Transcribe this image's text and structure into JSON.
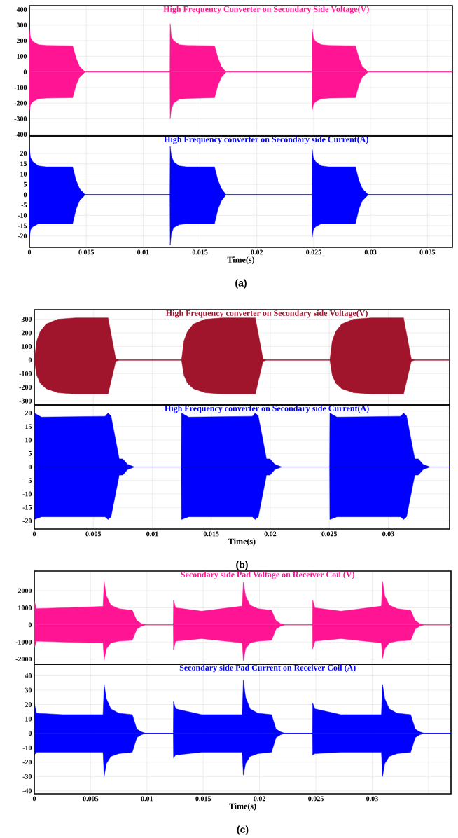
{
  "chart_data": [
    {
      "type": "area",
      "title": "High Frequency Converter on  Secondary Side Voltage(V)",
      "x": [
        0,
        0.0001,
        0.0003,
        0.0008,
        0.0015,
        0.0038,
        0.0041,
        0.0044,
        0.0049,
        0.01236,
        0.01238,
        0.01248,
        0.01268,
        0.01318,
        0.01388,
        0.01628,
        0.01658,
        0.01688,
        0.0173,
        0.02485,
        0.02487,
        0.02497,
        0.02517,
        0.02567,
        0.02637,
        0.02867,
        0.02897,
        0.02927,
        0.0298,
        0.0372
      ],
      "series": [
        {
          "color": "#ff1493",
          "values": [
            270,
            220,
            195,
            175,
            170,
            168,
            90,
            35,
            0,
            0,
            310,
            230,
            200,
            175,
            170,
            168,
            90,
            35,
            0,
            0,
            275,
            220,
            195,
            175,
            170,
            168,
            90,
            35,
            0,
            0
          ]
        },
        {
          "color": "#ff1493",
          "values": [
            -245,
            -210,
            -190,
            -172,
            -168,
            -165,
            -85,
            -35,
            0,
            0,
            -300,
            -240,
            -200,
            -175,
            -170,
            -165,
            -85,
            -35,
            0,
            0,
            -245,
            -210,
            -190,
            -172,
            -168,
            -165,
            -85,
            -35,
            0,
            0
          ]
        }
      ],
      "xlim": [
        0,
        0.0372
      ],
      "ylim": [
        -410,
        425
      ],
      "xticks": [
        0,
        0.005,
        0.01,
        0.015,
        0.02,
        0.025,
        0.03,
        0.035
      ],
      "yticks": [
        -400,
        -300,
        -200,
        -100,
        0,
        100,
        200,
        300,
        400
      ],
      "grid": true,
      "tick_labels": "y"
    },
    {
      "type": "area",
      "title": "High Frequency converter on Secondary side  Current(A)",
      "xlabel": "Time(s)",
      "annotations": [
        "(a)"
      ],
      "x": [
        0,
        0.0001,
        0.0003,
        0.0008,
        0.0015,
        0.0038,
        0.0041,
        0.0044,
        0.0049,
        0.01236,
        0.01238,
        0.01248,
        0.01268,
        0.01318,
        0.01388,
        0.01628,
        0.01658,
        0.01688,
        0.0173,
        0.02485,
        0.02487,
        0.02497,
        0.02517,
        0.02567,
        0.02637,
        0.02867,
        0.02897,
        0.02927,
        0.0298,
        0.0372
      ],
      "series": [
        {
          "color": "#0000ff",
          "values": [
            22,
            18,
            16,
            14,
            13.5,
            13.5,
            7,
            3,
            0,
            0,
            23.5,
            19,
            16,
            14,
            13.5,
            13.5,
            7,
            3,
            0,
            0,
            22,
            18,
            16,
            14,
            13.5,
            13.5,
            7,
            3,
            0,
            0
          ]
        },
        {
          "color": "#0000ff",
          "values": [
            -20.5,
            -17,
            -15.5,
            -14,
            -14,
            -14,
            -7,
            -3,
            0,
            0,
            -24.5,
            -19,
            -16,
            -14.5,
            -14,
            -14,
            -7,
            -3,
            0,
            0,
            -20.5,
            -17,
            -15.5,
            -14,
            -14,
            -14,
            -7,
            -3,
            0,
            0
          ]
        }
      ],
      "xlim": [
        0,
        0.0372
      ],
      "ylim": [
        -25.5,
        28.5
      ],
      "xticks": [
        0,
        0.005,
        0.01,
        0.015,
        0.02,
        0.025,
        0.03,
        0.035
      ],
      "yticks": [
        -20,
        -15,
        -10,
        -5,
        0,
        5,
        10,
        15,
        20
      ],
      "grid": true
    },
    {
      "type": "area",
      "title": "High Frequency converter on  Secondary side Voltage(V)",
      "x": [
        0,
        0.0002,
        0.0005,
        0.001,
        0.002,
        0.0035,
        0.00625,
        0.0069,
        0.0072,
        0.01248,
        0.01268,
        0.01298,
        0.01348,
        0.01448,
        0.01598,
        0.01873,
        0.01938,
        0.01968,
        0.02505,
        0.02525,
        0.02555,
        0.02605,
        0.02705,
        0.02855,
        0.0313,
        0.03195,
        0.03225,
        0.0352
      ],
      "series": [
        {
          "color": "#a0142c",
          "values": [
            0,
            140,
            210,
            265,
            300,
            310,
            310,
            10,
            0,
            0,
            140,
            210,
            265,
            300,
            310,
            310,
            10,
            0,
            0,
            140,
            210,
            265,
            300,
            310,
            310,
            10,
            0,
            0
          ]
        },
        {
          "color": "#a0142c",
          "values": [
            0,
            -110,
            -170,
            -210,
            -240,
            -250,
            -250,
            -10,
            0,
            0,
            -110,
            -170,
            -210,
            -240,
            -250,
            -250,
            -10,
            0,
            0,
            -110,
            -170,
            -210,
            -240,
            -250,
            -250,
            -10,
            0,
            0
          ]
        }
      ],
      "xlim": [
        0,
        0.0352
      ],
      "ylim": [
        -330,
        370
      ],
      "xticks": [
        0,
        0.005,
        0.01,
        0.015,
        0.02,
        0.025,
        0.03,
        0.035
      ],
      "yticks": [
        -300,
        -200,
        -100,
        0,
        100,
        200,
        300
      ],
      "grid": true,
      "tick_labels": "y"
    },
    {
      "type": "area",
      "title": "High Frequency converter on Secondary side  Current(A)",
      "xlabel": "Time(s)",
      "annotations": [
        "(b)"
      ],
      "x": [
        0,
        0.0006,
        0.006,
        0.00625,
        0.0065,
        0.0072,
        0.0075,
        0.0079,
        0.0085,
        0.01246,
        0.01248,
        0.01308,
        0.01848,
        0.01873,
        0.01898,
        0.01968,
        0.01998,
        0.02038,
        0.02098,
        0.02503,
        0.02505,
        0.02565,
        0.03105,
        0.0313,
        0.03155,
        0.03225,
        0.03255,
        0.03295,
        0.03355,
        0.0352
      ],
      "series": [
        {
          "color": "#0000ff",
          "values": [
            20,
            18.5,
            18.8,
            20,
            19,
            3,
            3,
            1,
            0,
            0,
            20,
            18.5,
            18.8,
            20,
            19,
            3,
            3,
            1,
            0,
            0,
            20,
            18.5,
            18.8,
            20,
            19,
            3,
            3,
            1,
            0,
            0
          ]
        },
        {
          "color": "#0000ff",
          "values": [
            -19.5,
            -18.5,
            -18.5,
            -19.5,
            -18.5,
            -3,
            -3,
            -1,
            0,
            0,
            -19.5,
            -18.5,
            -18.5,
            -19.5,
            -18.5,
            -3,
            -3,
            -1,
            0,
            0,
            -19.5,
            -18.5,
            -18.5,
            -19.5,
            -18.5,
            -3,
            -3,
            -1,
            0,
            0
          ]
        }
      ],
      "xlim": [
        0,
        0.0352
      ],
      "ylim": [
        -23,
        23
      ],
      "xticks": [
        0,
        0.005,
        0.01,
        0.015,
        0.02,
        0.025,
        0.03,
        {
          "value": 0.035,
          "label": null
        }
      ],
      "yticks": [
        -20,
        -15,
        -10,
        -5,
        0,
        5,
        10,
        15,
        20
      ],
      "grid": true
    },
    {
      "type": "area",
      "title": "Secondary side Pad Voltage on Receiver Coil (V)",
      "x": [
        0,
        0.0002,
        0.0025,
        0.0061,
        0.0062,
        0.0064,
        0.0068,
        0.0075,
        0.0087,
        0.0091,
        0.0095,
        0.0099,
        0.01234,
        0.01236,
        0.01256,
        0.01486,
        0.01846,
        0.01856,
        0.01876,
        0.01916,
        0.01986,
        0.02106,
        0.02146,
        0.02186,
        0.02226,
        0.0247,
        0.02472,
        0.02492,
        0.02722,
        0.03082,
        0.03092,
        0.03112,
        0.03152,
        0.03222,
        0.03342,
        0.03382,
        0.03422,
        0.03462,
        0.037
      ],
      "series": [
        {
          "color": "#ff1493",
          "values": [
            1400,
            950,
            1000,
            1080,
            2550,
            1700,
            1150,
            950,
            850,
            250,
            80,
            0,
            0,
            1450,
            1000,
            800,
            1100,
            2500,
            1700,
            1150,
            950,
            850,
            250,
            80,
            0,
            0,
            1450,
            1000,
            800,
            1100,
            2550,
            1700,
            1150,
            950,
            850,
            250,
            80,
            0,
            0
          ]
        },
        {
          "color": "#ff1493",
          "values": [
            -1350,
            -950,
            -1000,
            -1050,
            -2050,
            -1400,
            -1050,
            -950,
            -900,
            -250,
            -80,
            0,
            0,
            -1450,
            -950,
            -800,
            -1050,
            -2100,
            -1400,
            -1050,
            -950,
            -900,
            -250,
            -80,
            0,
            0,
            -1400,
            -950,
            -800,
            -1050,
            -1950,
            -1400,
            -1050,
            -950,
            -900,
            -250,
            -80,
            0,
            0
          ]
        }
      ],
      "xlim": [
        0,
        0.037
      ],
      "ylim": [
        -2300,
        3150
      ],
      "xticks": [
        0,
        0.005,
        0.01,
        0.015,
        0.02,
        0.025,
        0.03,
        0.035
      ],
      "yticks": [
        -2000,
        -1000,
        0,
        1000,
        2000
      ],
      "grid": true,
      "tick_labels": "y"
    },
    {
      "type": "area",
      "title": "Secondary side Pad Current on Receiver Coil (A)",
      "xlabel": "Time(s)",
      "annotations": [
        "(c)"
      ],
      "x": [
        0,
        0.0002,
        0.0025,
        0.0061,
        0.0062,
        0.0064,
        0.0068,
        0.0075,
        0.0087,
        0.0091,
        0.0095,
        0.0099,
        0.01234,
        0.01236,
        0.01256,
        0.01486,
        0.01846,
        0.01856,
        0.01876,
        0.01916,
        0.01986,
        0.02106,
        0.02146,
        0.02186,
        0.02226,
        0.0247,
        0.02472,
        0.02492,
        0.02722,
        0.03082,
        0.03092,
        0.03112,
        0.03152,
        0.03222,
        0.03342,
        0.03382,
        0.03422,
        0.03462,
        0.037
      ],
      "series": [
        {
          "color": "#0000ff",
          "values": [
            21,
            14,
            13,
            13,
            34,
            24,
            17,
            14,
            13,
            3,
            1,
            0,
            0,
            22,
            17,
            13,
            13,
            37,
            25,
            17,
            14,
            13,
            3,
            1,
            0,
            0,
            21,
            17,
            13,
            13,
            34,
            24,
            17,
            14,
            13,
            3,
            1,
            0,
            0
          ]
        },
        {
          "color": "#0000ff",
          "values": [
            -15,
            -13,
            -13,
            -13,
            -30,
            -21,
            -16,
            -14,
            -13,
            -3,
            -1,
            0,
            0,
            -17,
            -15,
            -13,
            -13,
            -29,
            -21,
            -16,
            -14,
            -13,
            -3,
            -1,
            0,
            0,
            -15,
            -14,
            -13,
            -13,
            -30,
            -21,
            -16,
            -14,
            -13,
            -3,
            -1,
            0,
            0
          ]
        }
      ],
      "xlim": [
        0,
        0.037
      ],
      "ylim": [
        -42,
        48
      ],
      "xticks": [
        0,
        0.005,
        0.01,
        0.015,
        0.02,
        0.025,
        0.03,
        {
          "value": 0.035,
          "label": null
        }
      ],
      "yticks": [
        -40,
        -30,
        -20,
        -10,
        0,
        10,
        20,
        30,
        40
      ],
      "grid": true
    }
  ]
}
